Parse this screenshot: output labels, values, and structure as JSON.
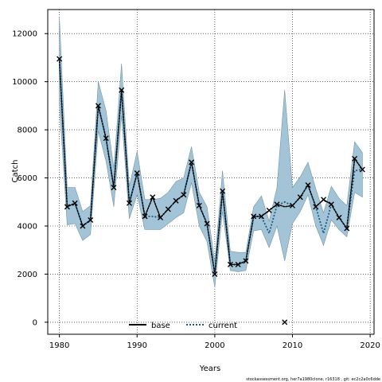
{
  "chart_data": {
    "type": "line",
    "xlabel": "Years",
    "ylabel": "Catch",
    "xlim": [
      1978.5,
      2020.5
    ],
    "ylim": [
      -500,
      13000
    ],
    "x_ticks": [
      1980,
      1990,
      2000,
      2010,
      2020
    ],
    "y_ticks": [
      0,
      2000,
      4000,
      6000,
      8000,
      10000,
      12000
    ],
    "grid": true,
    "legend_position": "bottom-center",
    "colors": {
      "band_fill": "#a3c4d6",
      "band_edge": "#6f97ab",
      "current_line": "#1f5a87",
      "base_line": "#000000"
    },
    "years": [
      1980,
      1981,
      1982,
      1983,
      1984,
      1985,
      1986,
      1987,
      1988,
      1989,
      1990,
      1991,
      1992,
      1993,
      1994,
      1995,
      1996,
      1997,
      1998,
      1999,
      2000,
      2001,
      2002,
      2003,
      2004,
      2005,
      2006,
      2007,
      2008,
      2009,
      2010,
      2011,
      2012,
      2013,
      2014,
      2015,
      2016,
      2017,
      2018,
      2019
    ],
    "series": [
      {
        "name": "base",
        "style": "solid",
        "values": [
          10950,
          4800,
          4950,
          4000,
          4250,
          9000,
          7650,
          5600,
          9650,
          4950,
          6200,
          4400,
          5200,
          4350,
          4700,
          5050,
          5300,
          6650,
          4850,
          4100,
          2000,
          5450,
          2400,
          2400,
          2550,
          4400,
          4400,
          4650,
          4900,
          4800,
          4850,
          5200,
          5700,
          4800,
          5100,
          4900,
          4350,
          3900,
          6800,
          6350
        ]
      },
      {
        "name": "current",
        "style": "dotted",
        "values": [
          10950,
          4800,
          4950,
          4000,
          4250,
          9000,
          7650,
          5600,
          9650,
          4950,
          6200,
          4400,
          4400,
          4350,
          4700,
          5050,
          5300,
          6650,
          4850,
          4100,
          2000,
          5450,
          2400,
          2400,
          2550,
          4400,
          4400,
          3700,
          4850,
          5000,
          4850,
          5200,
          5700,
          4800,
          3700,
          4900,
          4350,
          3900,
          6300,
          6350
        ]
      }
    ],
    "band_upper": [
      12700,
      5600,
      5600,
      4600,
      4850,
      10000,
      8800,
      6400,
      10750,
      5650,
      7100,
      5100,
      5100,
      5150,
      5400,
      5850,
      6000,
      7300,
      5400,
      4800,
      2500,
      6300,
      2950,
      2900,
      2900,
      4800,
      5250,
      4200,
      5600,
      9650,
      5600,
      6050,
      6650,
      5550,
      4550,
      5650,
      5150,
      4850,
      7500,
      7050
    ],
    "band_lower": [
      9100,
      4050,
      4100,
      3400,
      3650,
      7950,
      6700,
      4800,
      8600,
      4300,
      5300,
      3850,
      3850,
      3850,
      4100,
      4350,
      4550,
      5800,
      4000,
      3350,
      1450,
      4600,
      2150,
      2100,
      2150,
      3800,
      3850,
      3100,
      4000,
      2550,
      4100,
      4600,
      5300,
      4000,
      3200,
      4250,
      3850,
      3550,
      5400,
      5200
    ],
    "points": [
      {
        "x": 1980,
        "y": 10950
      },
      {
        "x": 1981,
        "y": 4800
      },
      {
        "x": 1982,
        "y": 4950
      },
      {
        "x": 1983,
        "y": 4000
      },
      {
        "x": 1984,
        "y": 4250
      },
      {
        "x": 1985,
        "y": 9000
      },
      {
        "x": 1986,
        "y": 7650
      },
      {
        "x": 1987,
        "y": 5600
      },
      {
        "x": 1988,
        "y": 9650
      },
      {
        "x": 1989,
        "y": 4950
      },
      {
        "x": 1990,
        "y": 6200
      },
      {
        "x": 1991,
        "y": 4400
      },
      {
        "x": 1992,
        "y": 5200
      },
      {
        "x": 1993,
        "y": 4350
      },
      {
        "x": 1994,
        "y": 4700
      },
      {
        "x": 1995,
        "y": 5050
      },
      {
        "x": 1996,
        "y": 5300
      },
      {
        "x": 1997,
        "y": 6650
      },
      {
        "x": 1998,
        "y": 4850
      },
      {
        "x": 1999,
        "y": 4100
      },
      {
        "x": 2000,
        "y": 2000
      },
      {
        "x": 2001,
        "y": 5450
      },
      {
        "x": 2002,
        "y": 2400
      },
      {
        "x": 2003,
        "y": 2400
      },
      {
        "x": 2004,
        "y": 2550
      },
      {
        "x": 2005,
        "y": 4400
      },
      {
        "x": 2006,
        "y": 4400
      },
      {
        "x": 2007,
        "y": 4650
      },
      {
        "x": 2008,
        "y": 4900
      },
      {
        "x": 2009,
        "y": 0
      },
      {
        "x": 2010,
        "y": 4850
      },
      {
        "x": 2011,
        "y": 5200
      },
      {
        "x": 2012,
        "y": 5700
      },
      {
        "x": 2013,
        "y": 4800
      },
      {
        "x": 2014,
        "y": 5100
      },
      {
        "x": 2015,
        "y": 4900
      },
      {
        "x": 2016,
        "y": 4350
      },
      {
        "x": 2017,
        "y": 3900
      },
      {
        "x": 2018,
        "y": 6800
      },
      {
        "x": 2019,
        "y": 6350
      }
    ]
  },
  "footer": "stockassessment.org, her7a1980clone, r16318 , git: ec2c2a0c6dde"
}
